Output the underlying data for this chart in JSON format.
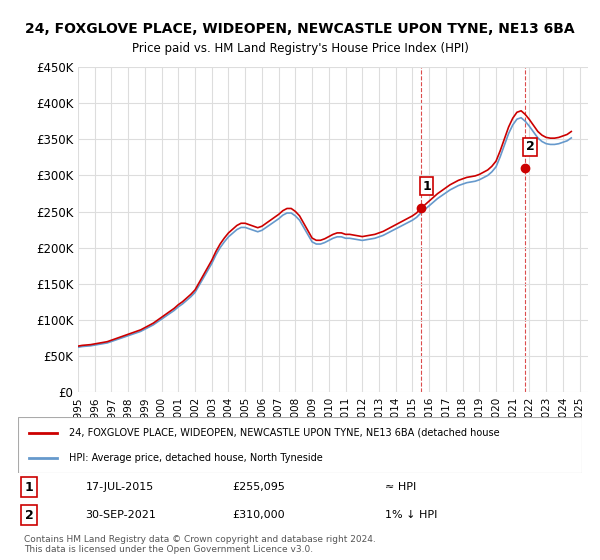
{
  "title": "24, FOXGLOVE PLACE, WIDEOPEN, NEWCASTLE UPON TYNE, NE13 6BA",
  "subtitle": "Price paid vs. HM Land Registry's House Price Index (HPI)",
  "ylim": [
    0,
    450000
  ],
  "yticks": [
    0,
    50000,
    100000,
    150000,
    200000,
    250000,
    300000,
    350000,
    400000,
    450000
  ],
  "ytick_labels": [
    "£0",
    "£50K",
    "£100K",
    "£150K",
    "£200K",
    "£250K",
    "£300K",
    "£350K",
    "£400K",
    "£450K"
  ],
  "xlim_start": 1995.0,
  "xlim_end": 2025.5,
  "hpi_color": "#6699cc",
  "price_color": "#cc0000",
  "transaction1_date": "17-JUL-2015",
  "transaction1_price": 255095,
  "transaction1_year": 2015.54,
  "transaction1_label": "1",
  "transaction2_date": "30-SEP-2021",
  "transaction2_price": 310000,
  "transaction2_year": 2021.75,
  "transaction2_label": "2",
  "legend_line1": "24, FOXGLOVE PLACE, WIDEOPEN, NEWCASTLE UPON TYNE, NE13 6BA (detached house",
  "legend_line2": "HPI: Average price, detached house, North Tyneside",
  "table_row1": [
    "1",
    "17-JUL-2015",
    "£255,095",
    "≈ HPI"
  ],
  "table_row2": [
    "2",
    "30-SEP-2021",
    "£310,000",
    "1% ↓ HPI"
  ],
  "footer": "Contains HM Land Registry data © Crown copyright and database right 2024.\nThis data is licensed under the Open Government Licence v3.0.",
  "bg_color": "#ffffff",
  "grid_color": "#dddddd",
  "hpi_years": [
    1995.0,
    1995.25,
    1995.5,
    1995.75,
    1996.0,
    1996.25,
    1996.5,
    1996.75,
    1997.0,
    1997.25,
    1997.5,
    1997.75,
    1998.0,
    1998.25,
    1998.5,
    1998.75,
    1999.0,
    1999.25,
    1999.5,
    1999.75,
    2000.0,
    2000.25,
    2000.5,
    2000.75,
    2001.0,
    2001.25,
    2001.5,
    2001.75,
    2002.0,
    2002.25,
    2002.5,
    2002.75,
    2003.0,
    2003.25,
    2003.5,
    2003.75,
    2004.0,
    2004.25,
    2004.5,
    2004.75,
    2005.0,
    2005.25,
    2005.5,
    2005.75,
    2006.0,
    2006.25,
    2006.5,
    2006.75,
    2007.0,
    2007.25,
    2007.5,
    2007.75,
    2008.0,
    2008.25,
    2008.5,
    2008.75,
    2009.0,
    2009.25,
    2009.5,
    2009.75,
    2010.0,
    2010.25,
    2010.5,
    2010.75,
    2011.0,
    2011.25,
    2011.5,
    2011.75,
    2012.0,
    2012.25,
    2012.5,
    2012.75,
    2013.0,
    2013.25,
    2013.5,
    2013.75,
    2014.0,
    2014.25,
    2014.5,
    2014.75,
    2015.0,
    2015.25,
    2015.5,
    2015.75,
    2016.0,
    2016.25,
    2016.5,
    2016.75,
    2017.0,
    2017.25,
    2017.5,
    2017.75,
    2018.0,
    2018.25,
    2018.5,
    2018.75,
    2019.0,
    2019.25,
    2019.5,
    2019.75,
    2020.0,
    2020.25,
    2020.5,
    2020.75,
    2021.0,
    2021.25,
    2021.5,
    2021.75,
    2022.0,
    2022.25,
    2022.5,
    2022.75,
    2023.0,
    2023.25,
    2023.5,
    2023.75,
    2024.0,
    2024.25,
    2024.5
  ],
  "hpi_values": [
    62000,
    63000,
    63500,
    64000,
    65000,
    66000,
    67000,
    68000,
    70000,
    72000,
    74000,
    76000,
    78000,
    80000,
    82000,
    84000,
    87000,
    90000,
    93000,
    97000,
    101000,
    105000,
    109000,
    113000,
    118000,
    122000,
    127000,
    132000,
    138000,
    148000,
    158000,
    168000,
    178000,
    190000,
    200000,
    208000,
    215000,
    220000,
    225000,
    228000,
    228000,
    226000,
    224000,
    222000,
    224000,
    228000,
    232000,
    236000,
    240000,
    245000,
    248000,
    248000,
    244000,
    238000,
    228000,
    218000,
    208000,
    205000,
    205000,
    207000,
    210000,
    213000,
    215000,
    215000,
    213000,
    213000,
    212000,
    211000,
    210000,
    211000,
    212000,
    213000,
    215000,
    217000,
    220000,
    223000,
    226000,
    229000,
    232000,
    235000,
    238000,
    242000,
    248000,
    253000,
    258000,
    263000,
    268000,
    272000,
    276000,
    280000,
    283000,
    286000,
    288000,
    290000,
    291000,
    292000,
    294000,
    297000,
    300000,
    305000,
    312000,
    326000,
    342000,
    358000,
    370000,
    378000,
    380000,
    375000,
    368000,
    360000,
    352000,
    347000,
    344000,
    343000,
    343000,
    344000,
    346000,
    348000,
    352000
  ]
}
